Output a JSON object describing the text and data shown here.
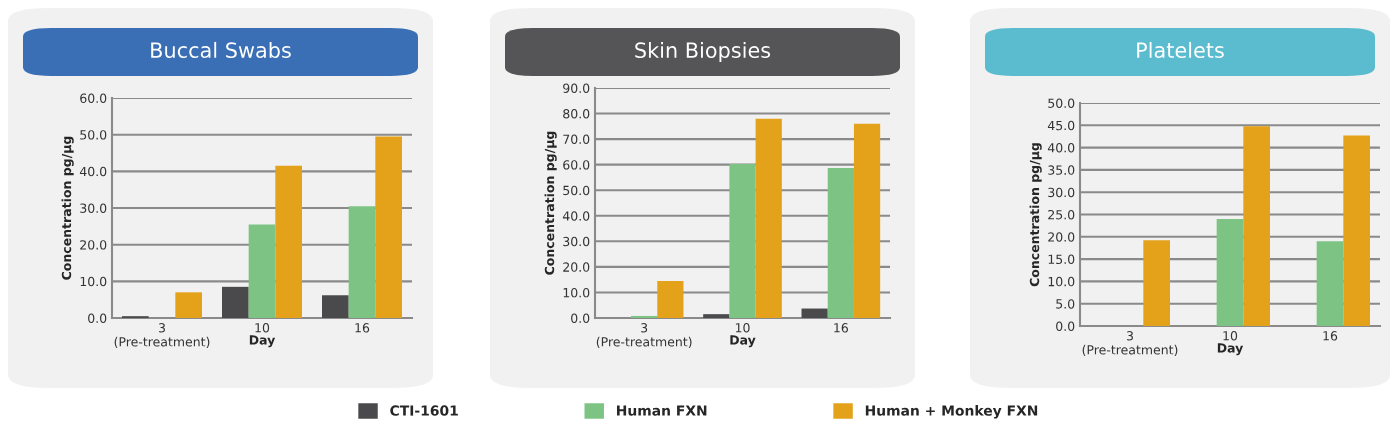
{
  "chart_data": [
    {
      "type": "bar",
      "title": "Buccal Swabs",
      "xlabel": "Day",
      "ylabel": "Concentration pg/μg",
      "categories": [
        "3\n(Pre-treatment)",
        "10",
        "16"
      ],
      "ylim": [
        0,
        60
      ],
      "yticks": [
        {
          "value": 0,
          "label": "0.0"
        },
        {
          "value": 10,
          "label": "10.0"
        },
        {
          "value": 20,
          "label": "20.0"
        },
        {
          "value": 30,
          "label": "30.0"
        },
        {
          "value": 40,
          "label": "40.0"
        },
        {
          "value": 50,
          "label": "50.0"
        },
        {
          "value": 60,
          "label": "60.0"
        }
      ],
      "grid": "y",
      "series": [
        {
          "color": "#4a4a4c",
          "values": [
            0.5,
            8.5,
            6.2
          ]
        },
        {
          "color": "#7dc383",
          "values": [
            null,
            25.5,
            30.5
          ]
        },
        {
          "color": "#e3a21a",
          "values": [
            7,
            41.5,
            49.5
          ]
        }
      ]
    },
    {
      "type": "bar",
      "title": "Skin Biopsies",
      "xlabel": "Day",
      "ylabel": "Concentration pg/μg",
      "categories": [
        "3\n(Pre-treatment)",
        "10",
        "16"
      ],
      "ylim": [
        0,
        90
      ],
      "yticks": [
        {
          "value": 0,
          "label": "0.0"
        },
        {
          "value": 10,
          "label": "10.0"
        },
        {
          "value": 20,
          "label": "20.0"
        },
        {
          "value": 30,
          "label": "30.0"
        },
        {
          "value": 40,
          "label": "40.0"
        },
        {
          "value": 50,
          "label": "50.0"
        },
        {
          "value": 60,
          "label": "60.0"
        },
        {
          "value": 70,
          "label": "70.0"
        },
        {
          "value": 80,
          "label": "80.0"
        },
        {
          "value": 90,
          "label": "90.0"
        }
      ],
      "grid": "y",
      "legend": "bottom",
      "series": [
        {
          "name": "CTI-1601",
          "color": "#4a4a4c",
          "values": [
            null,
            1.5,
            3.7
          ]
        },
        {
          "name": "Human FXN",
          "color": "#7dc383",
          "values": [
            0.8,
            60.3,
            58.7
          ]
        },
        {
          "name": "Human + Monkey FXN",
          "color": "#e3a21a",
          "values": [
            14.5,
            78,
            76
          ]
        }
      ]
    },
    {
      "type": "bar",
      "title": "Platelets",
      "xlabel": "Day",
      "ylabel": "Concentration pg/μg",
      "categories": [
        "3\n(Pre-treatment)",
        "10",
        "16"
      ],
      "ylim": [
        0,
        50
      ],
      "yticks": [
        {
          "value": 0,
          "label": "0.0"
        },
        {
          "value": 5,
          "label": "5.0"
        },
        {
          "value": 10,
          "label": "10.0"
        },
        {
          "value": 15,
          "label": "15.0"
        },
        {
          "value": 20,
          "label": "20.0"
        },
        {
          "value": 25,
          "label": "25.0"
        },
        {
          "value": 30,
          "label": "30.0"
        },
        {
          "value": 35,
          "label": "35.0"
        },
        {
          "value": 40,
          "label": "40.0"
        },
        {
          "value": 45,
          "label": "45.0"
        },
        {
          "value": 50,
          "label": "50.0"
        }
      ],
      "grid": "y",
      "series": [
        {
          "color": "#4a4a4c",
          "values": [
            null,
            null,
            null
          ]
        },
        {
          "color": "#7dc383",
          "values": [
            null,
            24,
            19
          ]
        },
        {
          "color": "#e3a21a",
          "values": [
            19.2,
            44.8,
            42.7
          ]
        }
      ]
    }
  ]
}
